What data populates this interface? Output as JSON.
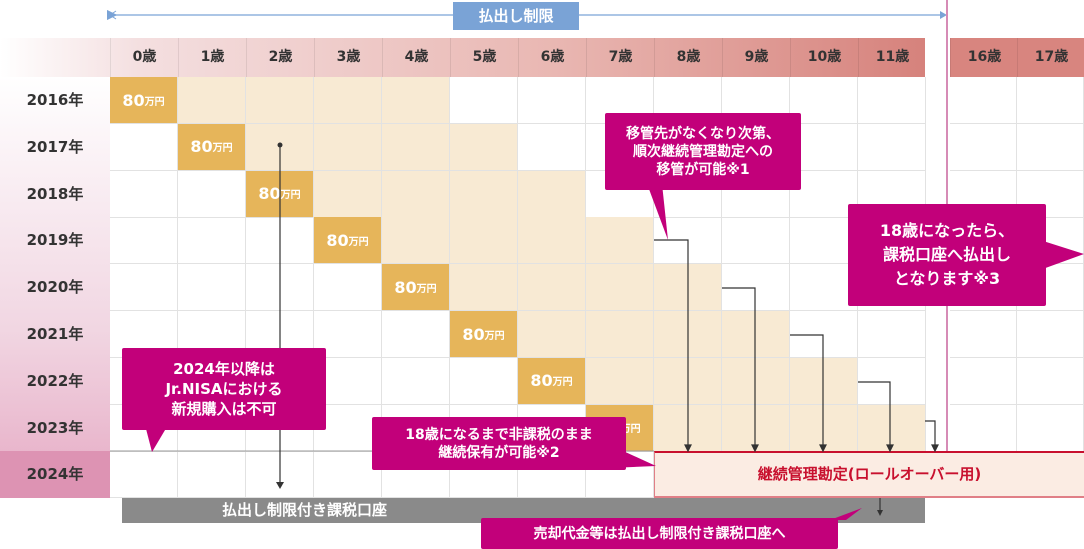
{
  "top_label": "払出し制限",
  "ages": [
    "0歳",
    "1歳",
    "2歳",
    "3歳",
    "4歳",
    "5歳",
    "6歳",
    "7歳",
    "8歳",
    "9歳",
    "10歳",
    "11歳",
    "16歳",
    "17歳"
  ],
  "years": [
    "2016年",
    "2017年",
    "2018年",
    "2019年",
    "2020年",
    "2021年",
    "2022年",
    "2023年",
    "2024年"
  ],
  "contribution": {
    "amount": "80",
    "unit": "万円"
  },
  "callouts": {
    "transfer": "移管先がなくなり次第、\n順次継続管理勘定への\n移管が可能※1",
    "age18": "18歳になったら、\n課税口座へ払出し\nとなります※3",
    "no_new": "2024年以降は\nJr.NISAにおける\n新規購入は不可",
    "tax_free": "18歳になるまで非課税のまま\n継続保有が可能※2",
    "proceeds": "売却代金等は払出し制限付き課税口座へ"
  },
  "rollover_label": "継続管理勘定(ロールオーバー用)",
  "restricted_account_label": "払出し制限付き課税口座",
  "colors": {
    "magenta": "#c2007a",
    "gold": "#e6b55a",
    "light": "#f8ead3",
    "blue": "#7aa3d6",
    "red": "#c8102e"
  }
}
